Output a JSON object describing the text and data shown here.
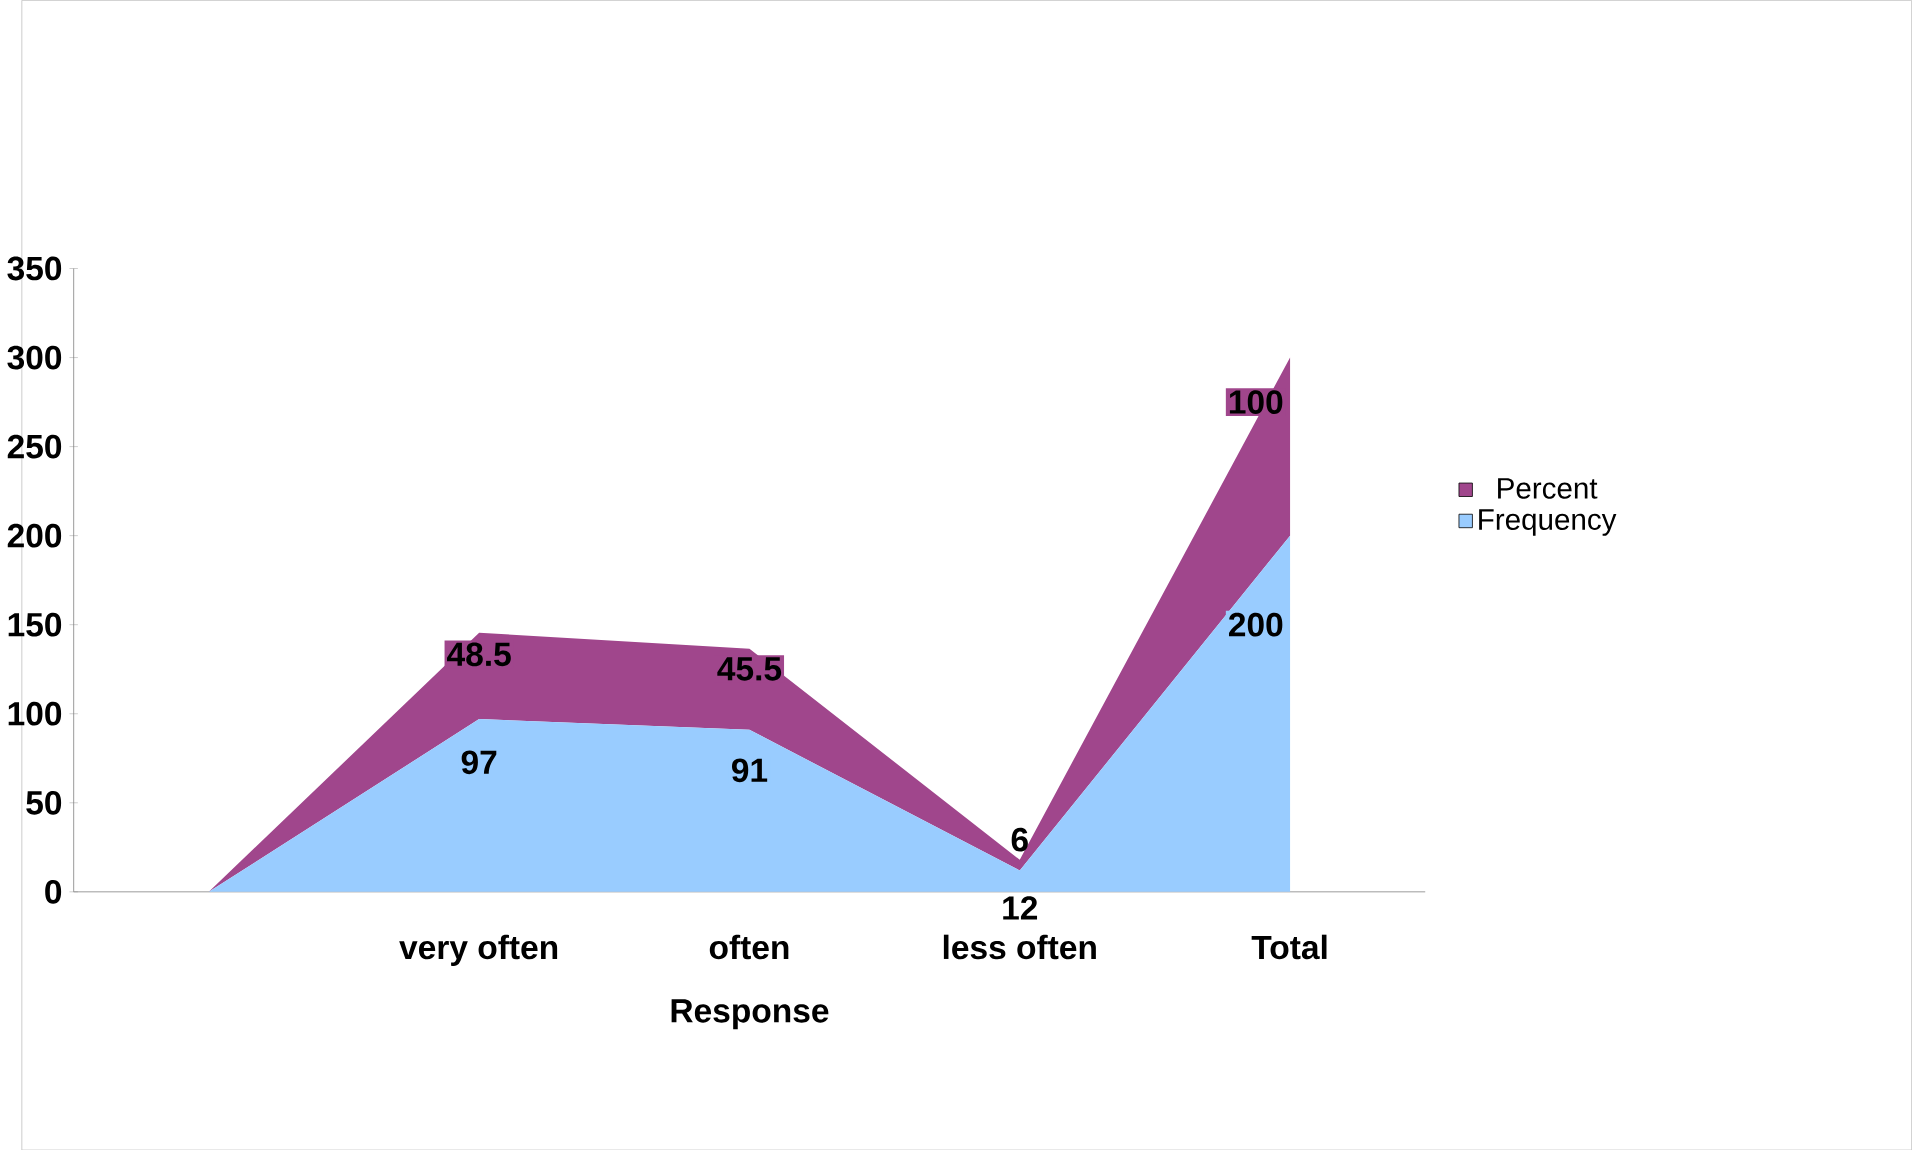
{
  "chart_data": {
    "type": "area",
    "stacked": true,
    "xlabel": "Response",
    "categories": [
      null,
      "very often",
      "often",
      "less often",
      "Total"
    ],
    "ylim": [
      0,
      350
    ],
    "yticks": [
      0,
      50,
      100,
      150,
      200,
      250,
      300,
      350
    ],
    "legend": "right",
    "series": [
      {
        "name": "Frequency",
        "color": "#99ccff",
        "values": [
          0,
          97,
          91,
          12,
          200
        ],
        "value_labels": [
          null,
          "97",
          "91",
          "12",
          "200"
        ]
      },
      {
        "name": "Percent",
        "color": "#a0468c",
        "values": [
          0,
          48.5,
          45.5,
          6,
          100
        ],
        "value_labels": [
          null,
          "48.5",
          "45.5",
          "6",
          "100"
        ]
      }
    ]
  }
}
